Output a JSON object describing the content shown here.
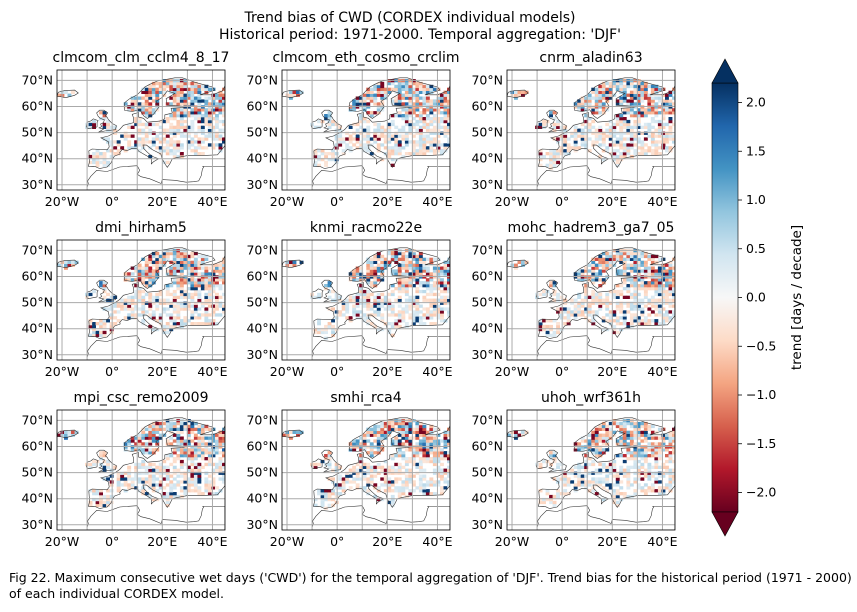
{
  "figure": {
    "title_line1": "Trend bias of CWD (CORDEX individual models)",
    "title_line2": "Historical period: 1971-2000. Temporal aggregation: 'DJF'"
  },
  "caption": "Fig 22. Maximum consecutive wet days ('CWD') for the temporal aggregation of 'DJF'. Trend bias for the historical period (1971 - 2000) of each individual CORDEX model.",
  "colorbar": {
    "label": "trend [days / decade]",
    "min": -2.2,
    "max": 2.2,
    "ticks": [
      2.0,
      1.5,
      1.0,
      0.5,
      0.0,
      -0.5,
      -1.0,
      -1.5,
      -2.0
    ],
    "tick_labels": [
      "2.0",
      "1.5",
      "1.0",
      "0.5",
      "0.0",
      "−0.5",
      "−1.0",
      "−1.5",
      "−2.0"
    ],
    "extend": "both",
    "colormap": "RdBu",
    "colors": [
      "#67001f",
      "#b2182b",
      "#d6604d",
      "#f4a582",
      "#fddbc7",
      "#f7f7f7",
      "#d1e5f0",
      "#92c5de",
      "#4393c3",
      "#2166ac",
      "#053061"
    ]
  },
  "chart_data": {
    "type": "heatmap",
    "map_projection": "lon-lat",
    "lon_range": [
      -22,
      45
    ],
    "lat_range": [
      28,
      74
    ],
    "x_ticks": [
      -20,
      0,
      20,
      40
    ],
    "x_tick_labels": [
      "20°W",
      "0°",
      "20°E",
      "40°E"
    ],
    "y_ticks": [
      30,
      40,
      50,
      60,
      70
    ],
    "y_tick_labels": [
      "30°N",
      "40°N",
      "50°N",
      "60°N",
      "70°N"
    ],
    "grid": true,
    "panels": [
      {
        "title": "clmcom_clm_cclm4_8_17"
      },
      {
        "title": "clmcom_eth_cosmo_crclim"
      },
      {
        "title": "cnrm_aladin63"
      },
      {
        "title": "dmi_hirham5"
      },
      {
        "title": "knmi_racmo22e"
      },
      {
        "title": "mohc_hadrem3_ga7_05"
      },
      {
        "title": "mpi_csc_remo2009"
      },
      {
        "title": "smhi_rca4"
      },
      {
        "title": "uhoh_wrf361h"
      }
    ]
  }
}
